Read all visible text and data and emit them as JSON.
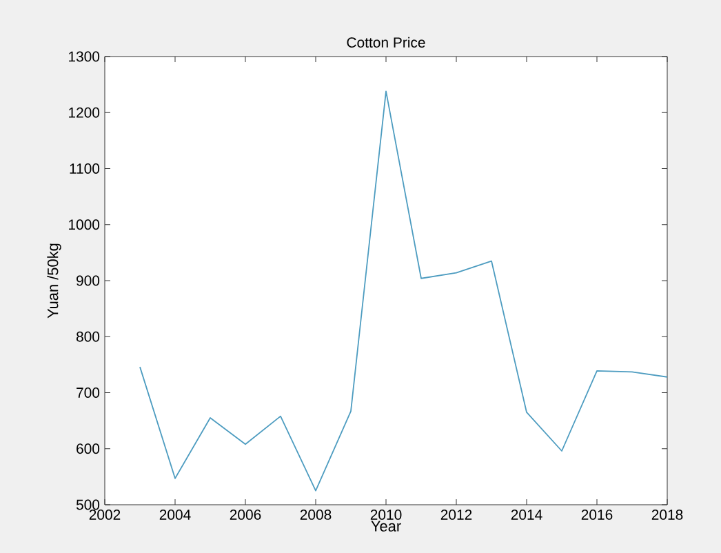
{
  "chart_data": {
    "type": "line",
    "title": "Cotton Price",
    "xlabel": "Year",
    "ylabel": "Yuan /50kg",
    "x": [
      2003,
      2004,
      2005,
      2006,
      2007,
      2008,
      2009,
      2010,
      2011,
      2012,
      2013,
      2014,
      2015,
      2016,
      2017,
      2018
    ],
    "series": [
      {
        "color": "#4d9cc0",
        "values": [
          746,
          547,
          655,
          608,
          658,
          525,
          667,
          1238,
          904,
          914,
          935,
          665,
          596,
          739,
          737,
          728
        ]
      }
    ],
    "xlim": [
      2002,
      2018
    ],
    "xticks": [
      2002,
      2004,
      2006,
      2008,
      2010,
      2012,
      2014,
      2016,
      2018
    ],
    "ylim": [
      500,
      1300
    ],
    "yticks": [
      500,
      600,
      700,
      800,
      900,
      1000,
      1100,
      1200,
      1300
    ],
    "grid": false,
    "legend": false,
    "marker": "none",
    "line_style": "solid"
  }
}
